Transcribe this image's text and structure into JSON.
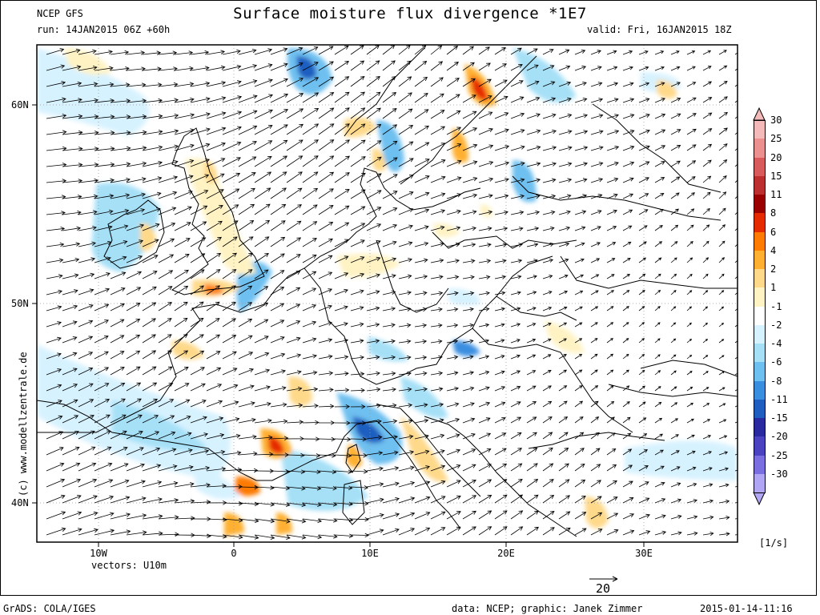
{
  "header": {
    "model": "NCEP GFS",
    "run": "run: 14JAN2015 06Z +60h",
    "title": "Surface moisture flux divergence *1E7",
    "valid": "valid: Fri, 16JAN2015 18Z"
  },
  "map": {
    "lat_labels": [
      "60N",
      "50N",
      "40N"
    ],
    "lon_labels": [
      "10W",
      "0",
      "10E",
      "20E",
      "30E"
    ],
    "vectors_label": "vectors: U10m",
    "watermark": "(c) www.modellzentrale.de",
    "ref_vector_label": "20"
  },
  "colorbar": {
    "units": "[1/s]",
    "levels": [
      "30",
      "25",
      "20",
      "15",
      "11",
      "8",
      "6",
      "4",
      "2",
      "1",
      "-1",
      "-2",
      "-4",
      "-6",
      "-8",
      "-11",
      "-15",
      "-20",
      "-25",
      "-30"
    ],
    "colors": [
      "#f4b9b9",
      "#eb8f8f",
      "#d85a5a",
      "#bd2e2e",
      "#9b0000",
      "#e62a00",
      "#ff7a00",
      "#ffb030",
      "#ffd98a",
      "#fff3c4",
      "#ffffff",
      "#d7f2ff",
      "#a6e0f7",
      "#6ec0f0",
      "#3a8ee0",
      "#1f5ec0",
      "#2a2aa0",
      "#4a42c0",
      "#7b6ee0",
      "#b0a6f4"
    ]
  },
  "footer": {
    "grads": "GrADS: COLA/IGES",
    "credit": "data: NCEP; graphic: Janek Zimmer",
    "timestamp": "2015-01-14-11:16"
  }
}
